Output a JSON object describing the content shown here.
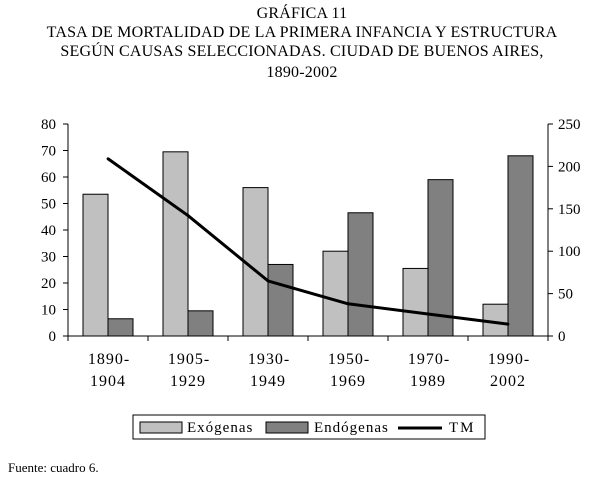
{
  "title_lines": [
    "GRÁFICA 11",
    "TASA DE MORTALIDAD DE LA PRIMERA INFANCIA Y ESTRUCTURA",
    "SEGÚN CAUSAS SELECCIONADAS. CIUDAD DE BUENOS AIRES,",
    "1890-2002"
  ],
  "source": "Fuente: cuadro 6.",
  "colors": {
    "exogenas": "#c0c0c0",
    "endogenas": "#808080",
    "tm": "#000000",
    "axis": "#000000"
  },
  "chart_data": {
    "type": "bar",
    "title": "TASA DE MORTALIDAD DE LA PRIMERA INFANCIA Y ESTRUCTURA SEGÚN CAUSAS SELECCIONADAS. CIUDAD DE BUENOS AIRES, 1890-2002",
    "categories": [
      [
        "1890-",
        "1904"
      ],
      [
        "1905-",
        "1929"
      ],
      [
        "1930-",
        "1949"
      ],
      [
        "1950-",
        "1969"
      ],
      [
        "1970-",
        "1989"
      ],
      [
        "1990-",
        "2002"
      ]
    ],
    "series": [
      {
        "name": "Exógenas",
        "type": "bar",
        "axis": "left",
        "values": [
          53.5,
          69.5,
          56,
          32,
          25.5,
          12
        ]
      },
      {
        "name": "Endógenas",
        "type": "bar",
        "axis": "left",
        "values": [
          6.5,
          9.5,
          27,
          46.5,
          59,
          68
        ]
      },
      {
        "name": "TM",
        "type": "line",
        "axis": "right",
        "values": [
          209,
          142,
          65,
          38,
          26,
          14
        ]
      }
    ],
    "y_left": {
      "min": 0,
      "max": 80,
      "ticks": [
        0,
        10,
        20,
        30,
        40,
        50,
        60,
        70,
        80
      ]
    },
    "y_right": {
      "min": 0,
      "max": 250,
      "ticks": [
        0,
        50,
        100,
        150,
        200,
        250
      ]
    },
    "legend_position": "bottom-center",
    "grid": false
  }
}
